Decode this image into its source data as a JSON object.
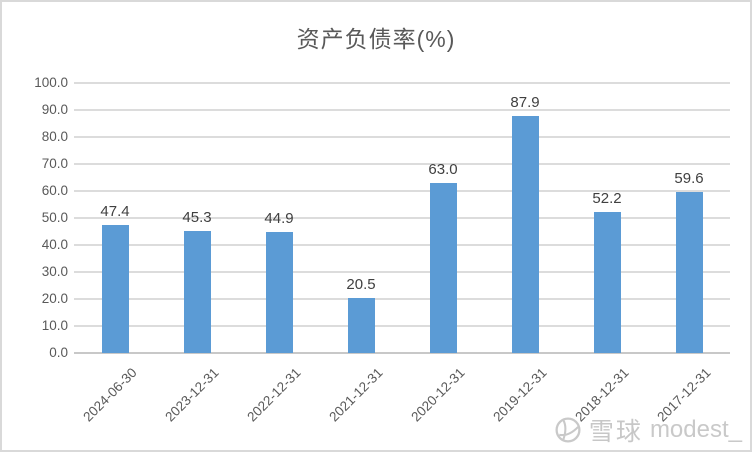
{
  "title": "资产负债率(%)",
  "chart_data": {
    "type": "bar",
    "title": "资产负债率(%)",
    "categories": [
      "2024-06-30",
      "2023-12-31",
      "2022-12-31",
      "2021-12-31",
      "2020-12-31",
      "2019-12-31",
      "2018-12-31",
      "2017-12-31"
    ],
    "values": [
      47.4,
      45.3,
      44.9,
      20.5,
      63.0,
      87.9,
      52.2,
      59.6
    ],
    "value_labels": [
      "47.4",
      "45.3",
      "44.9",
      "20.5",
      "63.0",
      "87.9",
      "52.2",
      "59.6"
    ],
    "xlabel": "",
    "ylabel": "",
    "ylim": [
      0,
      100
    ],
    "ytick_step": 10,
    "ytick_labels": [
      "100.0",
      "90.0",
      "80.0",
      "70.0",
      "60.0",
      "50.0",
      "40.0",
      "30.0",
      "20.0",
      "10.0",
      "0.0"
    ],
    "grid": true,
    "legend": "none",
    "bar_color": "#5b9bd5"
  },
  "watermark": {
    "logo": "xueqiu-snowball-logo",
    "brand": "雪球",
    "username": "modest_"
  },
  "colors": {
    "bar": "#5b9bd5",
    "grid": "#dcdcdc",
    "axis_line": "#c8c8c8",
    "axis_text": "#595959",
    "data_label": "#404040",
    "title_text": "#595959",
    "watermark": "#c9c9c9",
    "border": "#d9d9d9",
    "background": "#ffffff"
  }
}
